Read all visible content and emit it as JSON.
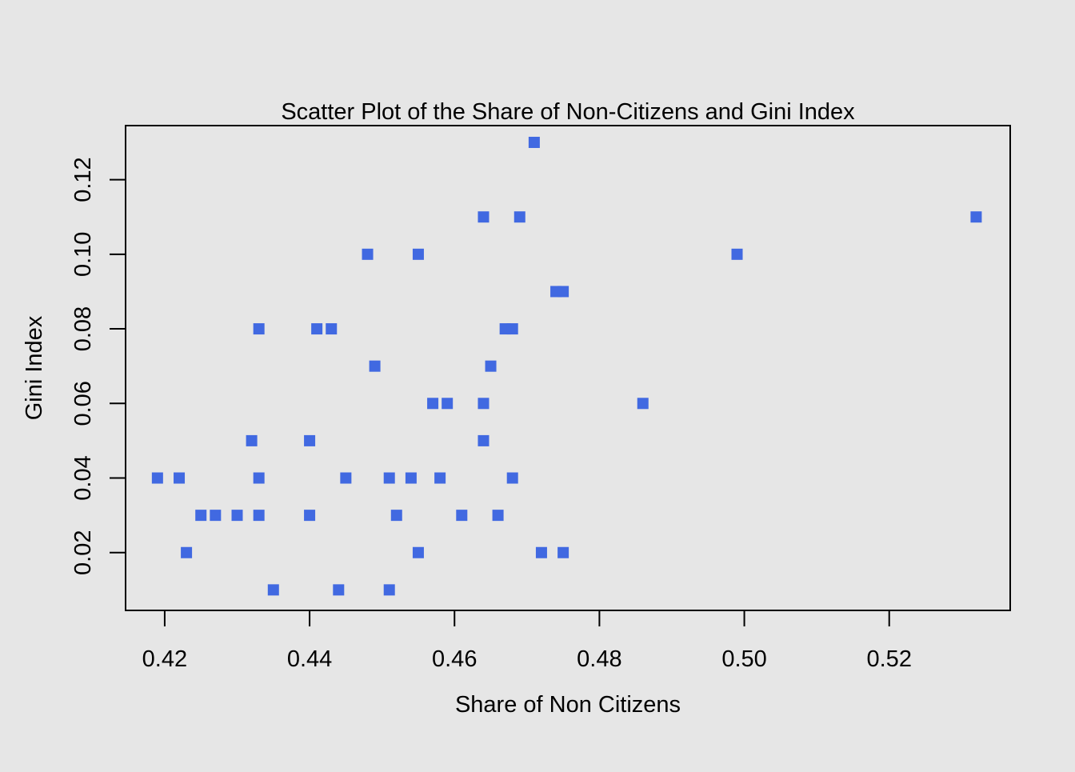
{
  "chart_data": {
    "type": "scatter",
    "title": "Scatter Plot of the Share of Non-Citizens and Gini Index",
    "xlabel": "Share of Non Citizens",
    "ylabel": "Gini Index",
    "xlim": [
      0.4146,
      0.5367
    ],
    "ylim": [
      0.0045,
      0.1345
    ],
    "xticks": [
      0.42,
      0.44,
      0.46,
      0.48,
      0.5,
      0.52
    ],
    "xtick_labels": [
      "0.42",
      "0.44",
      "0.46",
      "0.48",
      "0.50",
      "0.52"
    ],
    "yticks": [
      0.02,
      0.04,
      0.06,
      0.08,
      0.1,
      0.12
    ],
    "ytick_labels": [
      "0.02",
      "0.04",
      "0.06",
      "0.08",
      "0.10",
      "0.12"
    ],
    "grid": false,
    "marker": "square",
    "point_color": "#4169e1",
    "series": [
      {
        "points": [
          [
            0.419,
            0.04
          ],
          [
            0.422,
            0.04
          ],
          [
            0.423,
            0.02
          ],
          [
            0.425,
            0.03
          ],
          [
            0.427,
            0.03
          ],
          [
            0.43,
            0.03
          ],
          [
            0.432,
            0.05
          ],
          [
            0.433,
            0.08
          ],
          [
            0.433,
            0.04
          ],
          [
            0.433,
            0.03
          ],
          [
            0.435,
            0.01
          ],
          [
            0.44,
            0.05
          ],
          [
            0.44,
            0.03
          ],
          [
            0.441,
            0.08
          ],
          [
            0.443,
            0.08
          ],
          [
            0.444,
            0.01
          ],
          [
            0.445,
            0.04
          ],
          [
            0.448,
            0.1
          ],
          [
            0.449,
            0.07
          ],
          [
            0.451,
            0.04
          ],
          [
            0.451,
            0.01
          ],
          [
            0.452,
            0.03
          ],
          [
            0.454,
            0.04
          ],
          [
            0.455,
            0.1
          ],
          [
            0.455,
            0.02
          ],
          [
            0.457,
            0.06
          ],
          [
            0.458,
            0.04
          ],
          [
            0.459,
            0.06
          ],
          [
            0.461,
            0.03
          ],
          [
            0.464,
            0.11
          ],
          [
            0.464,
            0.06
          ],
          [
            0.464,
            0.05
          ],
          [
            0.465,
            0.07
          ],
          [
            0.466,
            0.03
          ],
          [
            0.467,
            0.08
          ],
          [
            0.468,
            0.08
          ],
          [
            0.468,
            0.04
          ],
          [
            0.469,
            0.11
          ],
          [
            0.471,
            0.13
          ],
          [
            0.472,
            0.02
          ],
          [
            0.474,
            0.09
          ],
          [
            0.475,
            0.09
          ],
          [
            0.475,
            0.02
          ],
          [
            0.486,
            0.06
          ],
          [
            0.499,
            0.1
          ],
          [
            0.532,
            0.11
          ]
        ]
      }
    ]
  }
}
